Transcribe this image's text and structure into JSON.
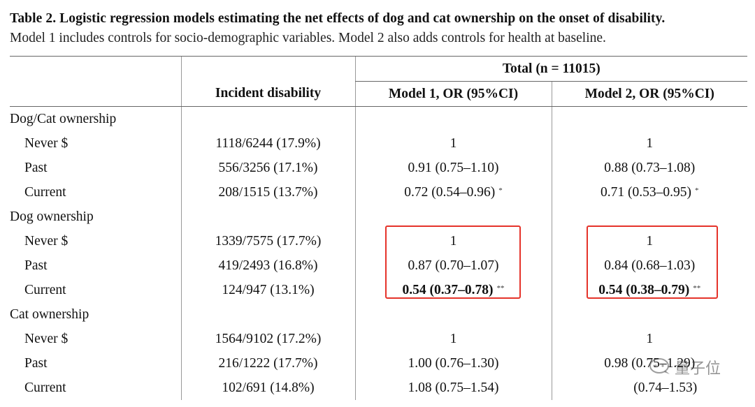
{
  "caption": {
    "title": "Table 2.  Logistic regression models estimating the net effects of dog and cat ownership on the onset of disability.",
    "subtitle": "Model 1 includes controls for socio-demographic variables. Model 2 also adds controls for health at baseline."
  },
  "header": {
    "group_title": "Total (n = 11015)",
    "col_incident": "Incident disability",
    "col_model1": "Model 1, OR (95%CI)",
    "col_model2": "Model 2, OR (95%CI)"
  },
  "groups": [
    {
      "label": "Dog/Cat ownership",
      "rows": [
        {
          "label": "Never $",
          "incident": "1118/6244 (17.9%)",
          "m1": "1",
          "m1_sig": "",
          "m2": "1",
          "m2_sig": ""
        },
        {
          "label": "Past",
          "incident": "556/3256 (17.1%)",
          "m1": "0.91 (0.75–1.10)",
          "m1_sig": "",
          "m2": "0.88 (0.73–1.08)",
          "m2_sig": ""
        },
        {
          "label": "Current",
          "incident": "208/1515 (13.7%)",
          "m1": "0.72 (0.54–0.96)",
          "m1_sig": "*",
          "m2": "0.71 (0.53–0.95)",
          "m2_sig": "*"
        }
      ]
    },
    {
      "label": "Dog ownership",
      "rows": [
        {
          "label": "Never $",
          "incident": "1339/7575 (17.7%)",
          "m1": "1",
          "m1_sig": "",
          "m2": "1",
          "m2_sig": ""
        },
        {
          "label": "Past",
          "incident": "419/2493 (16.8%)",
          "m1": "0.87 (0.70–1.07)",
          "m1_sig": "",
          "m2": "0.84 (0.68–1.03)",
          "m2_sig": ""
        },
        {
          "label": "Current",
          "incident": "124/947 (13.1%)",
          "m1": "0.54 (0.37–0.78)",
          "m1_sig": "**",
          "m2": "0.54 (0.38–0.79)",
          "m2_sig": "**"
        }
      ]
    },
    {
      "label": "Cat ownership",
      "rows": [
        {
          "label": "Never $",
          "incident": "1564/9102 (17.2%)",
          "m1": "1",
          "m1_sig": "",
          "m2": "1",
          "m2_sig": ""
        },
        {
          "label": "Past",
          "incident": "216/1222 (17.7%)",
          "m1": "1.00 (0.76–1.30)",
          "m1_sig": "",
          "m2": "0.98 (0.75–1.29)",
          "m2_sig": ""
        },
        {
          "label": "Current",
          "incident": "102/691 (14.8%)",
          "m1": "1.08 (0.75–1.54)",
          "m1_sig": "",
          "m2": "(0.74–1.53)",
          "m2_sig": ""
        }
      ]
    }
  ],
  "highlight_color": "#e5332a",
  "watermark": {
    "text": "量子位",
    "icon": "chat-bubble-icon"
  }
}
